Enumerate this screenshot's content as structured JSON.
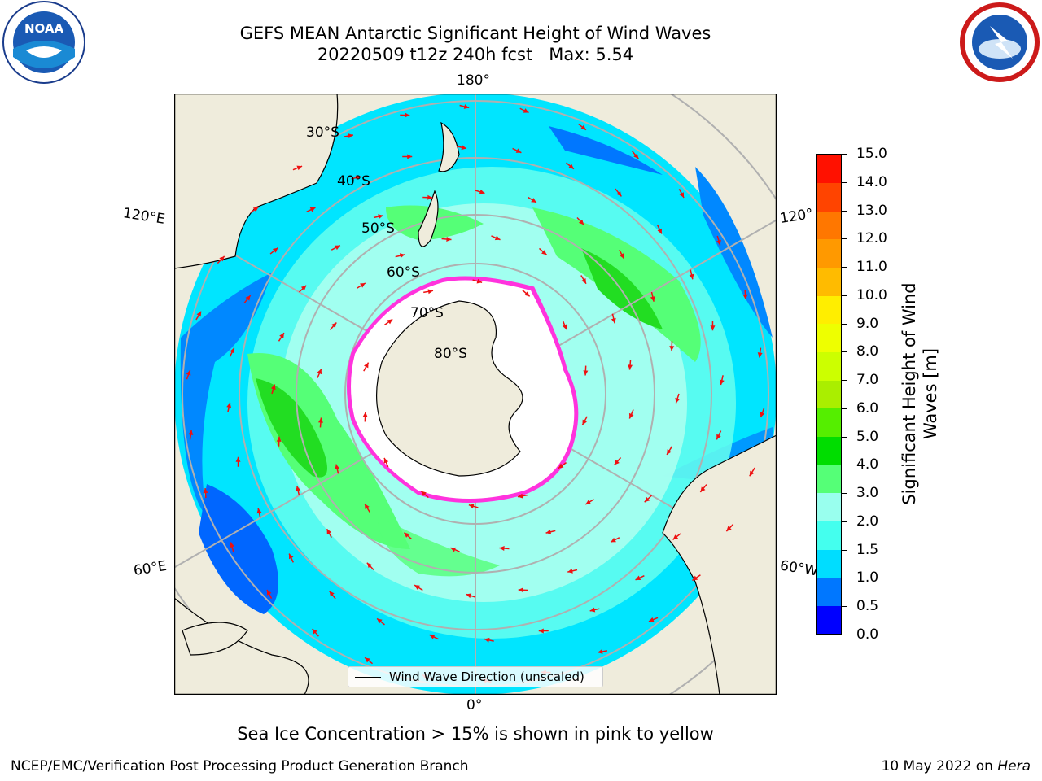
{
  "title_line1": "GEFS MEAN Antarctic Significant Height of Wind Waves",
  "title_line2": "20220509 t12z 240h fcst   Max: 5.54",
  "logos": {
    "left": "noaa-logo",
    "right": "nws-logo"
  },
  "map": {
    "projection": "south-polar-stereographic",
    "lon_labels": {
      "top": "180°",
      "bottom": "0°",
      "upper_left": "120°E",
      "lower_left": "60°E",
      "upper_right": "120°",
      "lower_right": "60°W"
    },
    "lat_labels": [
      "30°S",
      "40°S",
      "50°S",
      "60°S",
      "70°S",
      "80°S"
    ],
    "legend_label": "Wind Wave Direction (unscaled)",
    "colors": {
      "land": "#efecdc",
      "ice": "#ffffff",
      "ice_edge": "#ff33dd",
      "arrow": "#ee1111",
      "grid": "#b0b0b0"
    }
  },
  "colorbar": {
    "title_line1": "Significant Height of Wind",
    "title_line2": "Waves [m]",
    "ticks": [
      "0.0",
      "0.5",
      "1.0",
      "1.5",
      "2.0",
      "3.0",
      "4.0",
      "5.0",
      "6.0",
      "7.0",
      "8.0",
      "9.0",
      "10.0",
      "11.0",
      "12.0",
      "13.0",
      "14.0",
      "15.0"
    ],
    "colors": [
      "#0000ff",
      "#0077ff",
      "#00ddff",
      "#44ffee",
      "#99ffee",
      "#55ff77",
      "#00dd00",
      "#55ee00",
      "#aaee00",
      "#ccff00",
      "#eeff00",
      "#ffee00",
      "#ffbb00",
      "#ff9900",
      "#ff7700",
      "#ff4400",
      "#ff1100"
    ]
  },
  "note": "Sea Ice Concentration > 15% is shown in pink to yellow",
  "footer_left": "NCEP/EMC/Verification Post Processing Product Generation Branch",
  "footer_right_date": "10 May 2022 on",
  "footer_right_host": "Hera"
}
